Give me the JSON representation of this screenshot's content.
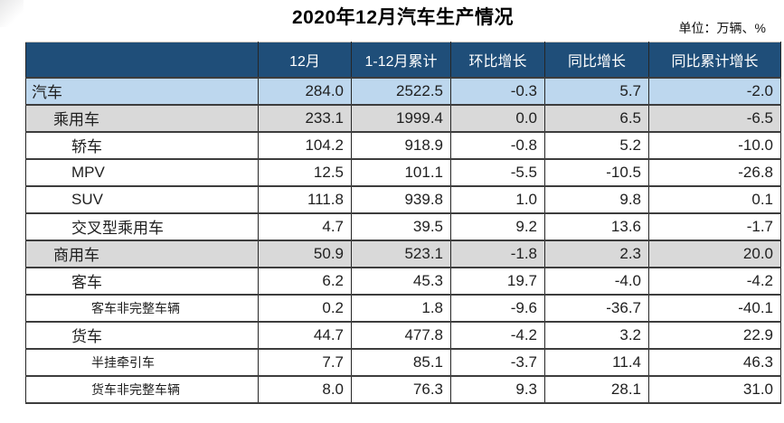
{
  "colors": {
    "header_bg": "#1F4E79",
    "header_text": "#FFFFFF",
    "total_row_bg": "#BDD7EE",
    "subtotal_row_bg": "#D9D9D9",
    "border": "#3d3d3d"
  },
  "chart_data": {
    "type": "table",
    "title": "2020年12月汽车生产情况",
    "unit_note": "单位：万辆、%",
    "columns": [
      "",
      "12月",
      "1-12月累计",
      "环比增长",
      "同比增长",
      "同比累计增长"
    ],
    "rows": [
      {
        "label": "汽车",
        "values": [
          "284.0",
          "2522.5",
          "-0.3",
          "5.7",
          "-2.0"
        ]
      },
      {
        "label": "乘用车",
        "values": [
          "233.1",
          "1999.4",
          "0.0",
          "6.5",
          "-6.5"
        ]
      },
      {
        "label": "轿车",
        "values": [
          "104.2",
          "918.9",
          "-0.8",
          "5.2",
          "-10.0"
        ]
      },
      {
        "label": "MPV",
        "values": [
          "12.5",
          "101.1",
          "-5.5",
          "-10.5",
          "-26.8"
        ]
      },
      {
        "label": "SUV",
        "values": [
          "111.8",
          "939.8",
          "1.0",
          "9.8",
          "0.1"
        ]
      },
      {
        "label": "交叉型乘用车",
        "values": [
          "4.7",
          "39.5",
          "9.2",
          "13.6",
          "-1.7"
        ]
      },
      {
        "label": "商用车",
        "values": [
          "50.9",
          "523.1",
          "-1.8",
          "2.3",
          "20.0"
        ]
      },
      {
        "label": "客车",
        "values": [
          "6.2",
          "45.3",
          "19.7",
          "-4.0",
          "-4.2"
        ]
      },
      {
        "label": "客车非完整车辆",
        "values": [
          "0.2",
          "1.8",
          "-9.6",
          "-36.7",
          "-40.1"
        ]
      },
      {
        "label": "货车",
        "values": [
          "44.7",
          "477.8",
          "-4.2",
          "3.2",
          "22.9"
        ]
      },
      {
        "label": "半挂牵引车",
        "values": [
          "7.7",
          "85.1",
          "-3.7",
          "11.4",
          "46.3"
        ]
      },
      {
        "label": "货车非完整车辆",
        "values": [
          "8.0",
          "76.3",
          "9.3",
          "28.1",
          "31.0"
        ]
      }
    ]
  }
}
